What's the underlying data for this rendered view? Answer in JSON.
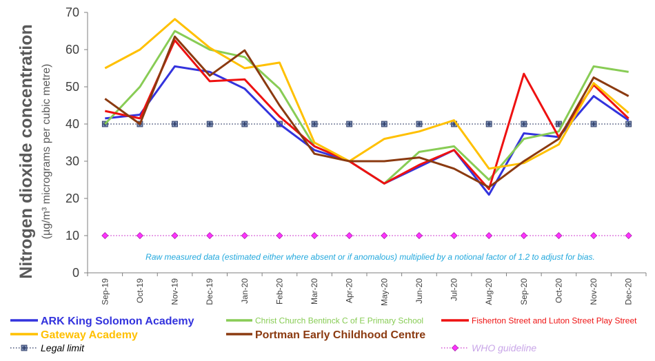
{
  "chart_data": {
    "type": "line",
    "ylabel": "Nitrogen dioxide concentration",
    "ylabel_units": "(µg/m³ micrograms per cubic metre)",
    "ylim": [
      0,
      70
    ],
    "yticks": [
      0,
      10,
      20,
      30,
      40,
      50,
      60,
      70
    ],
    "grid": false,
    "legend_placement": "bottom",
    "annotation": "Raw measured data (estimated either where absent or if anomalous) multiplied by a notional factor of 1.2 to adjust for bias.",
    "categories": [
      "Sep-19",
      "Oct-19",
      "Nov-19",
      "Dec-19",
      "Jan-20",
      "Feb-20",
      "Mar-20",
      "Apr-20",
      "May-20",
      "Jun-20",
      "Jul-20",
      "Aug-20",
      "Sep-20",
      "Oct-20",
      "Nov-20",
      "Dec-20"
    ],
    "series": [
      {
        "name": "ARK King Solomon Academy",
        "color": "#3333dd",
        "style": "solid",
        "values": [
          41.5,
          42.5,
          55.5,
          54,
          49.5,
          40,
          33,
          30,
          24,
          28.5,
          33,
          21,
          37.5,
          36.5,
          47.5,
          41
        ]
      },
      {
        "name": "Christ Church Bentinck C of E Primary School",
        "color": "#88cc55",
        "style": "solid",
        "values": [
          40,
          50,
          65,
          60,
          58,
          49.5,
          34,
          30,
          24,
          32.5,
          34,
          25,
          36,
          38,
          55.5,
          54
        ]
      },
      {
        "name": "Fisherton Street and Luton Street Play Street",
        "color": "#ee1111",
        "style": "solid",
        "values": [
          43.5,
          41.5,
          62.5,
          51.5,
          52,
          42,
          34,
          30,
          24,
          29,
          33,
          22.5,
          53.5,
          36.5,
          50.5,
          41.5
        ]
      },
      {
        "name": "Gateway Academy",
        "color": "#ffc000",
        "style": "solid",
        "values": [
          55,
          60,
          68.2,
          60.5,
          55,
          56.5,
          35,
          30,
          36,
          38,
          41,
          28,
          29.5,
          34.5,
          51,
          43
        ]
      },
      {
        "name": "Portman Early Childhood Centre",
        "color": "#8b3a10",
        "style": "solid",
        "values": [
          46.8,
          40,
          63.5,
          53,
          59.8,
          45,
          32,
          30,
          30,
          31,
          28,
          23,
          30,
          36,
          52.5,
          47.5
        ]
      },
      {
        "name": "Legal limit",
        "color": "#1f2d5a",
        "style": "dotted-marker",
        "marker": "square-cross",
        "values": [
          40,
          40,
          40,
          40,
          40,
          40,
          40,
          40,
          40,
          40,
          40,
          40,
          40,
          40,
          40,
          40
        ]
      },
      {
        "name": "WHO guideline",
        "color": "#cc33cc",
        "style": "dotted-marker",
        "marker": "diamond",
        "values": [
          10,
          10,
          10,
          10,
          10,
          10,
          10,
          10,
          10,
          10,
          10,
          10,
          10,
          10,
          10,
          10
        ]
      }
    ]
  }
}
